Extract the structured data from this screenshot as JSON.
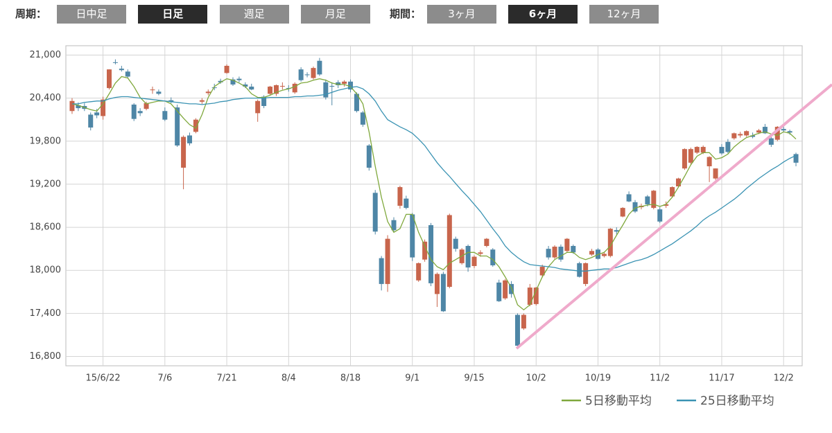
{
  "toolbar": {
    "cycle_label": "周期：",
    "cycle_options": [
      "日中足",
      "日足",
      "週足",
      "月足"
    ],
    "cycle_selected": 1,
    "range_label": "期間：",
    "range_options": [
      "3ヶ月",
      "6ヶ月",
      "12ヶ月"
    ],
    "range_selected": 1
  },
  "chart_data": {
    "type": "candlestick",
    "grid": true,
    "up_color": "#c8654c",
    "down_color": "#4e86a6",
    "ylim": [
      16670,
      21130
    ],
    "yticks": [
      {
        "value": 21000,
        "label": "21,000"
      },
      {
        "value": 20400,
        "label": "20,400"
      },
      {
        "value": 19800,
        "label": "19,800"
      },
      {
        "value": 19200,
        "label": "19,200"
      },
      {
        "value": 18600,
        "label": "18,600"
      },
      {
        "value": 18000,
        "label": "18,000"
      },
      {
        "value": 17400,
        "label": "17,400"
      },
      {
        "value": 16800,
        "label": "16,800"
      }
    ],
    "categories": [
      null,
      null,
      null,
      null,
      null,
      "15/6/22",
      null,
      null,
      null,
      null,
      null,
      null,
      null,
      null,
      null,
      "7/6",
      null,
      null,
      null,
      null,
      null,
      null,
      null,
      null,
      null,
      "7/21",
      null,
      null,
      null,
      null,
      null,
      null,
      null,
      null,
      null,
      "8/4",
      null,
      null,
      null,
      null,
      null,
      null,
      null,
      null,
      null,
      "8/18",
      null,
      null,
      null,
      null,
      null,
      null,
      null,
      null,
      null,
      "9/1",
      null,
      null,
      null,
      null,
      null,
      null,
      null,
      null,
      null,
      "9/15",
      null,
      null,
      null,
      null,
      null,
      null,
      null,
      null,
      null,
      "10/2",
      null,
      null,
      null,
      null,
      null,
      null,
      null,
      null,
      null,
      "10/19",
      null,
      null,
      null,
      null,
      null,
      null,
      null,
      null,
      null,
      "11/2",
      null,
      null,
      null,
      null,
      null,
      null,
      null,
      null,
      null,
      "11/17",
      null,
      null,
      null,
      null,
      null,
      null,
      null,
      null,
      null,
      "12/2",
      null,
      null
    ],
    "open": [
      20220,
      20300,
      20290,
      20170,
      20200,
      20150,
      20540,
      20900,
      20810,
      20770,
      20310,
      20220,
      20250,
      20510,
      20490,
      20220,
      20370,
      20270,
      19430,
      19880,
      19930,
      20350,
      20470,
      20550,
      20640,
      20750,
      20660,
      20670,
      20590,
      20560,
      20190,
      20420,
      20460,
      20460,
      20560,
      20540,
      20480,
      20800,
      20730,
      20680,
      20920,
      20620,
      20570,
      20620,
      20600,
      20630,
      20460,
      20200,
      19740,
      19080,
      18170,
      17810,
      18700,
      18900,
      19000,
      18780,
      17860,
      18150,
      18630,
      17670,
      17950,
      17770,
      18440,
      18100,
      18340,
      18060,
      18230,
      18340,
      18290,
      17830,
      17610,
      17810,
      17380,
      17190,
      17520,
      17530,
      17930,
      18300,
      18180,
      18330,
      18270,
      18340,
      18100,
      17810,
      18220,
      18290,
      18200,
      18200,
      18560,
      18750,
      19060,
      18950,
      18880,
      19030,
      18870,
      18850,
      18900,
      19030,
      19170,
      19420,
      19500,
      19640,
      19640,
      19450,
      19280,
      19720,
      19790,
      19840,
      19880,
      19880,
      19880,
      19920,
      20000,
      19840,
      19820,
      19970,
      19940,
      19620
    ],
    "high": [
      20400,
      20340,
      20330,
      20200,
      20250,
      20420,
      20800,
      20940,
      20850,
      20800,
      20330,
      20260,
      20350,
      20560,
      20520,
      20270,
      20410,
      20310,
      19880,
      19920,
      20120,
      20400,
      20520,
      20600,
      20670,
      20870,
      20690,
      20700,
      20620,
      20600,
      20380,
      20440,
      20570,
      20590,
      20620,
      20580,
      20620,
      20830,
      20760,
      20840,
      20960,
      20660,
      20620,
      20650,
      20650,
      20660,
      20480,
      20220,
      19760,
      19120,
      18200,
      18490,
      18740,
      19180,
      19040,
      18800,
      18110,
      18430,
      18660,
      17970,
      17980,
      18790,
      18470,
      18310,
      18360,
      18210,
      18280,
      18450,
      18310,
      17870,
      17880,
      17850,
      17400,
      17400,
      17810,
      17770,
      18080,
      18340,
      18350,
      18360,
      18450,
      18360,
      18120,
      18110,
      18300,
      18310,
      18260,
      18590,
      18600,
      18880,
      19100,
      18980,
      18930,
      19050,
      19120,
      18880,
      18960,
      19170,
      19290,
      19700,
      19710,
      19730,
      19740,
      19590,
      19420,
      19760,
      19830,
      19920,
      19930,
      19950,
      19920,
      19970,
      20040,
      19860,
      20010,
      20010,
      19960,
      19640
    ],
    "low": [
      20180,
      20220,
      20220,
      19950,
      20120,
      20100,
      20520,
      20870,
      20770,
      20680,
      20080,
      20150,
      20230,
      20460,
      20440,
      20080,
      20330,
      19720,
      19130,
      19740,
      19910,
      20320,
      20440,
      20510,
      20600,
      20740,
      20570,
      20620,
      20540,
      20510,
      20070,
      20260,
      20440,
      20430,
      20520,
      20490,
      20460,
      20630,
      20690,
      20660,
      20710,
      20380,
      20300,
      20540,
      20560,
      20480,
      20200,
      20000,
      19390,
      18500,
      17720,
      17700,
      18540,
      18860,
      18850,
      18130,
      17840,
      18120,
      17780,
      17490,
      17420,
      17750,
      18260,
      18080,
      17980,
      18030,
      18190,
      18320,
      18050,
      17560,
      17590,
      17620,
      16920,
      17170,
      17500,
      17510,
      17900,
      18150,
      18160,
      18120,
      18250,
      18230,
      17900,
      17780,
      18200,
      18150,
      18180,
      18180,
      18500,
      18740,
      18950,
      18800,
      18850,
      18890,
      18850,
      18660,
      18870,
      19010,
      19150,
      19400,
      19480,
      19620,
      19620,
      19230,
      19260,
      19610,
      19630,
      19820,
      19850,
      19860,
      19840,
      19900,
      19900,
      19720,
      19800,
      19930,
      19890,
      19450
    ],
    "close": [
      20360,
      20260,
      20250,
      19990,
      20160,
      20380,
      20800,
      20890,
      20790,
      20700,
      20110,
      20190,
      20330,
      20520,
      20460,
      20100,
      20350,
      19740,
      19860,
      19770,
      20100,
      20370,
      20490,
      20540,
      20620,
      20850,
      20590,
      20650,
      20560,
      20520,
      20360,
      20290,
      20560,
      20580,
      20570,
      20530,
      20600,
      20650,
      20720,
      20820,
      20730,
      20410,
      20560,
      20580,
      20630,
      20520,
      20220,
      20030,
      19430,
      18540,
      17810,
      18440,
      18560,
      19160,
      18870,
      18180,
      18100,
      18400,
      17820,
      17950,
      17430,
      18770,
      18300,
      18290,
      18040,
      18190,
      18250,
      18440,
      18070,
      17570,
      17860,
      17670,
      16950,
      17380,
      17760,
      17760,
      18050,
      18180,
      18330,
      18150,
      18440,
      18250,
      17910,
      18100,
      18270,
      18160,
      18230,
      18580,
      18540,
      18870,
      18960,
      18820,
      18900,
      18920,
      19110,
      18680,
      18920,
      19160,
      19280,
      19690,
      19690,
      19720,
      19720,
      19580,
      19420,
      19630,
      19650,
      19910,
      19900,
      19940,
      19860,
      19950,
      19910,
      19750,
      20000,
      19950,
      19920,
      19500
    ],
    "lines": [
      {
        "name": "5日移動平均",
        "color": "#7fa83c",
        "values": [
          20320,
          20300,
          20270,
          20240,
          20220,
          20320,
          20460,
          20610,
          20700,
          20680,
          20560,
          20410,
          20320,
          20340,
          20360,
          20360,
          20320,
          20220,
          20120,
          20030,
          19980,
          20170,
          20410,
          20560,
          20620,
          20670,
          20650,
          20610,
          20560,
          20460,
          20410,
          20410,
          20440,
          20480,
          20510,
          20530,
          20560,
          20610,
          20620,
          20650,
          20670,
          20650,
          20610,
          20590,
          20590,
          20560,
          20460,
          20320,
          19930,
          19450,
          19020,
          18680,
          18530,
          18580,
          18780,
          18780,
          18530,
          18340,
          18150,
          18050,
          18010,
          18100,
          18150,
          18200,
          18250,
          18250,
          18200,
          18200,
          18150,
          18050,
          17910,
          17760,
          17520,
          17450,
          17520,
          17720,
          17910,
          18050,
          18150,
          18200,
          18250,
          18250,
          18180,
          18150,
          18180,
          18220,
          18250,
          18340,
          18490,
          18630,
          18780,
          18870,
          18890,
          18910,
          18920,
          18890,
          18920,
          19020,
          19160,
          19310,
          19470,
          19590,
          19640,
          19640,
          19550,
          19570,
          19620,
          19720,
          19790,
          19850,
          19880,
          19910,
          19930,
          19900,
          19880,
          19930,
          19910,
          19830
        ]
      },
      {
        "name": "25日移動平均",
        "color": "#3a93b3",
        "values": [
          20320,
          20320,
          20340,
          20350,
          20360,
          20360,
          20390,
          20410,
          20420,
          20420,
          20410,
          20400,
          20390,
          20380,
          20370,
          20360,
          20350,
          20340,
          20330,
          20320,
          20320,
          20310,
          20320,
          20330,
          20350,
          20360,
          20380,
          20390,
          20400,
          20400,
          20400,
          20400,
          20410,
          20410,
          20410,
          20410,
          20420,
          20420,
          20430,
          20430,
          20440,
          20450,
          20480,
          20510,
          20530,
          20550,
          20560,
          20530,
          20460,
          20360,
          20220,
          20100,
          20050,
          20000,
          19960,
          19910,
          19830,
          19740,
          19620,
          19500,
          19400,
          19310,
          19210,
          19110,
          19020,
          18920,
          18820,
          18700,
          18580,
          18470,
          18340,
          18250,
          18180,
          18120,
          18080,
          18070,
          18060,
          18050,
          18040,
          18020,
          18010,
          18000,
          17990,
          17990,
          18000,
          18010,
          18020,
          18020,
          18040,
          18070,
          18100,
          18130,
          18150,
          18180,
          18220,
          18270,
          18320,
          18370,
          18430,
          18490,
          18550,
          18620,
          18700,
          18760,
          18810,
          18870,
          18930,
          18990,
          19060,
          19140,
          19210,
          19280,
          19340,
          19400,
          19450,
          19510,
          19560,
          19600
        ]
      }
    ]
  }
}
